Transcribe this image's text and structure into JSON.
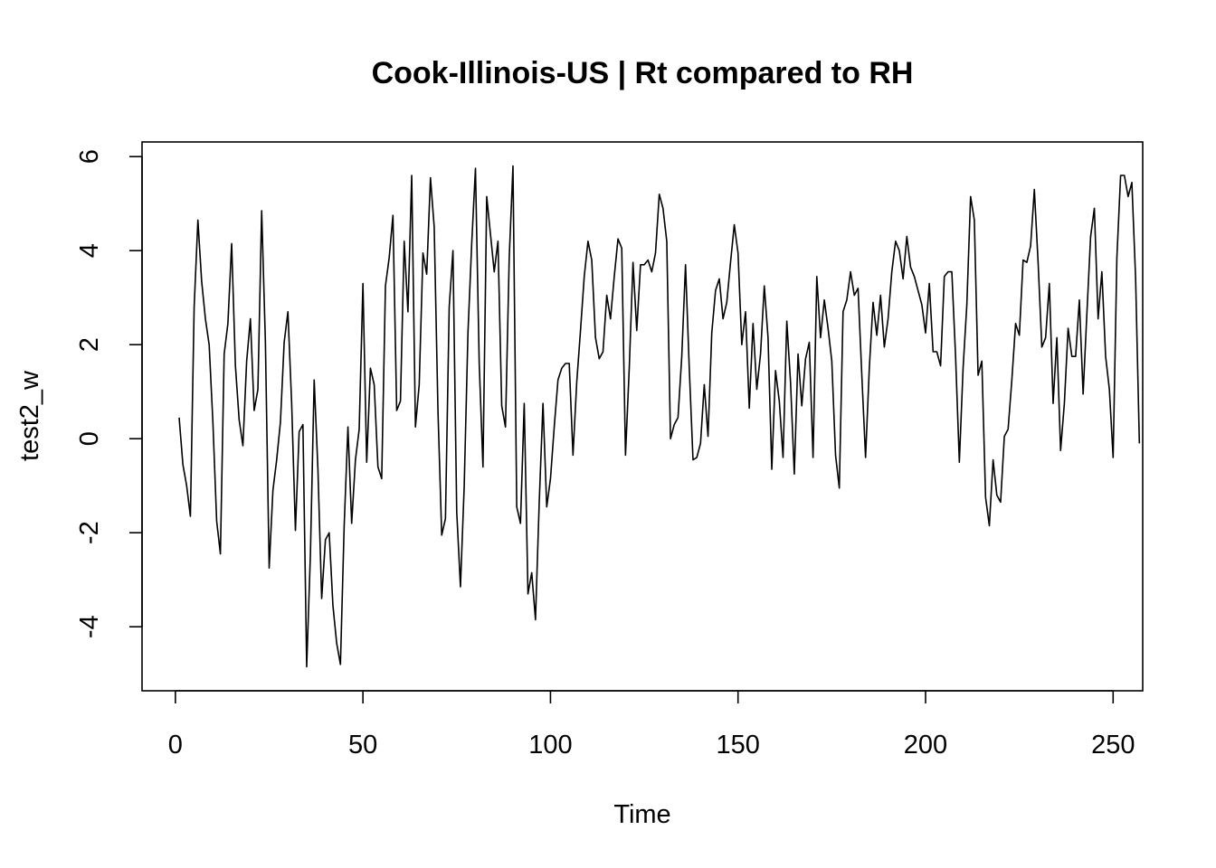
{
  "chart_data": {
    "type": "line",
    "title": "Cook-Illinois-US | Rt compared to RH",
    "xlabel": "Time",
    "ylabel": "test2_w",
    "xlim": [
      1,
      248
    ],
    "ylim": [
      -4.9,
      5.85
    ],
    "xticks": [
      0,
      50,
      100,
      150,
      200,
      250
    ],
    "yticks": [
      -4,
      -2,
      0,
      2,
      4,
      6
    ],
    "grid": false,
    "legend": "none",
    "line_color": "#000000",
    "series": [
      {
        "x_start": 1,
        "values": [
          0.45,
          -0.55,
          -1.0,
          -1.65,
          2.8,
          4.65,
          3.35,
          2.55,
          2.0,
          0.35,
          -1.75,
          -2.45,
          1.8,
          2.45,
          4.15,
          1.55,
          0.4,
          -0.15,
          1.65,
          2.55,
          0.6,
          1.05,
          4.85,
          2.05,
          -2.75,
          -1.1,
          -0.45,
          0.35,
          2.05,
          2.7,
          0.75,
          -1.95,
          0.15,
          0.3,
          -4.85,
          -2.45,
          1.25,
          -0.65,
          -3.4,
          -2.15,
          -2.0,
          -3.55,
          -4.35,
          -4.8,
          -1.85,
          0.25,
          -1.8,
          -0.45,
          0.2,
          3.3,
          -0.5,
          1.5,
          1.15,
          -0.6,
          -0.85,
          3.25,
          3.85,
          4.75,
          0.6,
          0.8,
          4.2,
          2.7,
          5.6,
          0.25,
          1.15,
          3.95,
          3.5,
          5.55,
          4.5,
          0.6,
          -2.05,
          -1.7,
          2.8,
          4.0,
          -1.55,
          -3.15,
          -1.0,
          2.25,
          4.15,
          5.75,
          1.6,
          -0.6,
          5.15,
          4.35,
          3.55,
          4.2,
          0.7,
          0.25,
          3.85,
          5.8,
          -1.45,
          -1.8,
          0.75,
          -3.3,
          -2.85,
          -3.85,
          -1.35,
          0.75,
          -1.45,
          -0.85,
          0.25,
          1.25,
          1.5,
          1.6,
          1.6,
          -0.35,
          1.2,
          2.3,
          3.45,
          4.2,
          3.8,
          2.15,
          1.7,
          1.85,
          3.05,
          2.55,
          3.45,
          4.25,
          4.05,
          -0.35,
          1.5,
          3.75,
          2.3,
          3.7,
          3.7,
          3.8,
          3.55,
          3.95,
          5.2,
          4.9,
          4.2,
          0.0,
          0.3,
          0.45,
          1.75,
          3.7,
          1.5,
          -0.45,
          -0.4,
          -0.1,
          1.15,
          0.05,
          2.25,
          3.15,
          3.4,
          2.55,
          2.9,
          3.75,
          4.55,
          3.95,
          2.0,
          2.7,
          0.65,
          2.45,
          1.05,
          1.8,
          3.25,
          2.15,
          -0.65,
          1.45,
          0.8,
          -0.4,
          2.5,
          1.2,
          -0.75,
          1.8,
          0.7,
          1.7,
          2.05,
          -0.4,
          3.45,
          2.15,
          2.95,
          2.35,
          1.65,
          -0.35,
          -1.05,
          2.7,
          2.95,
          3.55,
          3.05,
          3.2,
          1.35,
          -0.4,
          1.5,
          2.9,
          2.2,
          3.05,
          1.95,
          2.55,
          3.55,
          4.2,
          4.0,
          3.4,
          4.3,
          3.65,
          3.45,
          3.15,
          2.85,
          2.25,
          3.3,
          1.85,
          1.85,
          1.55,
          3.45,
          3.55,
          3.55,
          1.75,
          -0.5,
          1.5,
          2.85,
          5.15,
          4.65,
          1.35,
          1.65,
          -1.25,
          -1.85,
          -0.45,
          -1.2,
          -1.35,
          0.05,
          0.2,
          1.25,
          2.45,
          2.2,
          3.8,
          3.75,
          4.1,
          5.3,
          3.75,
          1.95,
          2.15,
          3.3,
          0.75,
          2.15,
          -0.25,
          0.75,
          2.35,
          1.75,
          1.75,
          2.95,
          0.95,
          2.65,
          4.3,
          4.9,
          2.55,
          3.55,
          1.75,
          1.05,
          -0.4,
          3.85,
          5.6,
          5.6,
          5.15,
          5.45,
          3.4,
          -0.1
        ]
      }
    ]
  }
}
